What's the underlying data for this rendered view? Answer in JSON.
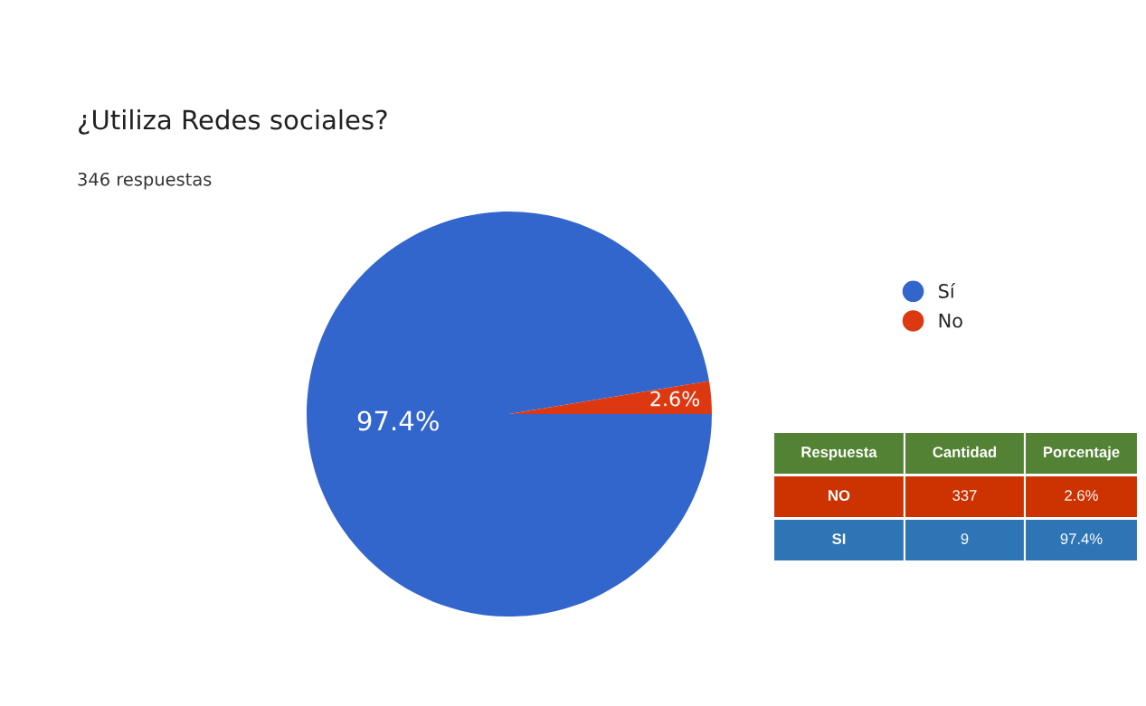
{
  "chart_data": [
    {
      "type": "pie",
      "title": "¿Utiliza Redes sociales?",
      "subtitle": "346 respuestas",
      "categories": [
        "Sí",
        "No"
      ],
      "values": [
        97.4,
        2.6
      ],
      "colors": [
        "#3366cc",
        "#dc3912"
      ],
      "value_labels": [
        "97.4%",
        "2.6%"
      ],
      "legend": "right"
    },
    {
      "type": "other",
      "annotations": [
        "Respuesta",
        "Cantidad",
        "Porcentaje",
        "NO",
        "337",
        "2.6%",
        "SI",
        "9",
        "97.4%"
      ]
    }
  ]
}
